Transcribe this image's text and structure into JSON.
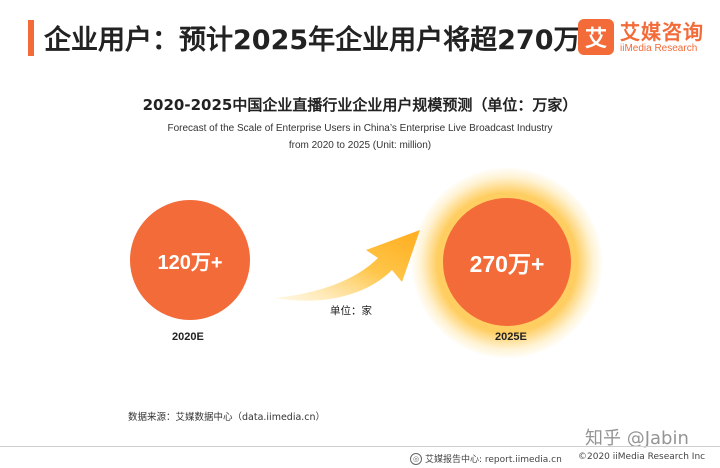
{
  "header": {
    "title": "企业用户：预计2025年企业用户将超270万家",
    "accent_color": "#f26b38"
  },
  "logo": {
    "mark": "艾",
    "name_cn": "艾媒咨询",
    "name_en": "iiMedia Research"
  },
  "chart_data": {
    "type": "bubble-comparison",
    "title": "2020-2025中国企业直播行业企业用户规模预测（单位：万家）",
    "subtitle_lines": [
      "Forecast of the Scale of Enterprise Users in China’s Enterprise Live Broadcast Industry",
      "from 2020 to 2025 (Unit: million)"
    ],
    "categories": [
      "2020E",
      "2025E"
    ],
    "values": [
      120,
      270
    ],
    "value_labels": [
      "120万+",
      "270万+"
    ],
    "unit_label": "单位：家",
    "colors": {
      "bubble": "#f26b38",
      "arrow": "#ffb52e",
      "glow": "#ffd166"
    }
  },
  "source": "数据来源：艾媒数据中心（data.iimedia.cn）",
  "footer": {
    "report_site": "艾媒报告中心: report.iimedia.cn",
    "copyright": "©2020  iiMedia Research  Inc"
  },
  "watermark": "知乎 @Jabin"
}
